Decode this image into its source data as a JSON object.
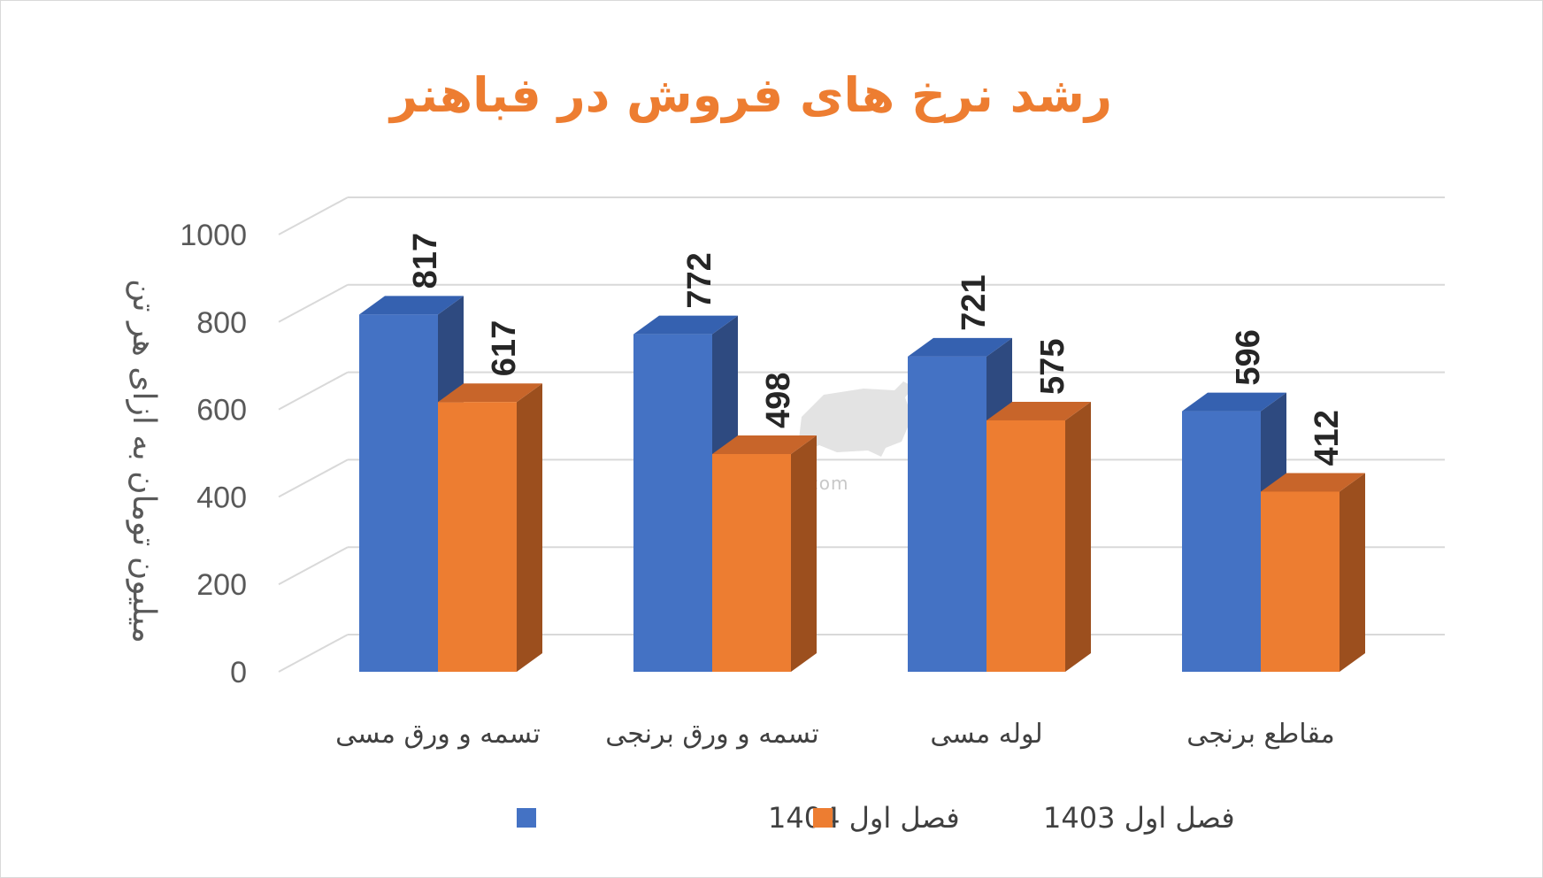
{
  "chart_data": {
    "type": "bar",
    "title": "رشد نرخ های فروش در فباهنر",
    "ylabel": "میلیون تومان به ازای هر تن",
    "xlabel": "",
    "ylim": [
      0,
      1000
    ],
    "yticks": [
      "0",
      "200",
      "400",
      "600",
      "800",
      "1000"
    ],
    "categories": [
      "تسمه و ورق مسی",
      "تسمه  و ورق برنجی",
      "لوله مسی",
      "مقاطع برنجی"
    ],
    "series": [
      {
        "name": "فصل  اول  1404",
        "values": [
          817,
          772,
          721,
          596
        ],
        "color": "#4472c4",
        "side": "#2e4a80",
        "top": "#3561b0"
      },
      {
        "name": "فصل اول 1403",
        "values": [
          617,
          498,
          575,
          412
        ],
        "color": "#ed7d31",
        "side": "#9c4f1e",
        "top": "#c8652a"
      }
    ],
    "legend_position": "bottom",
    "grid": true
  },
  "watermark": {
    "text": "nabzebourse.com"
  }
}
